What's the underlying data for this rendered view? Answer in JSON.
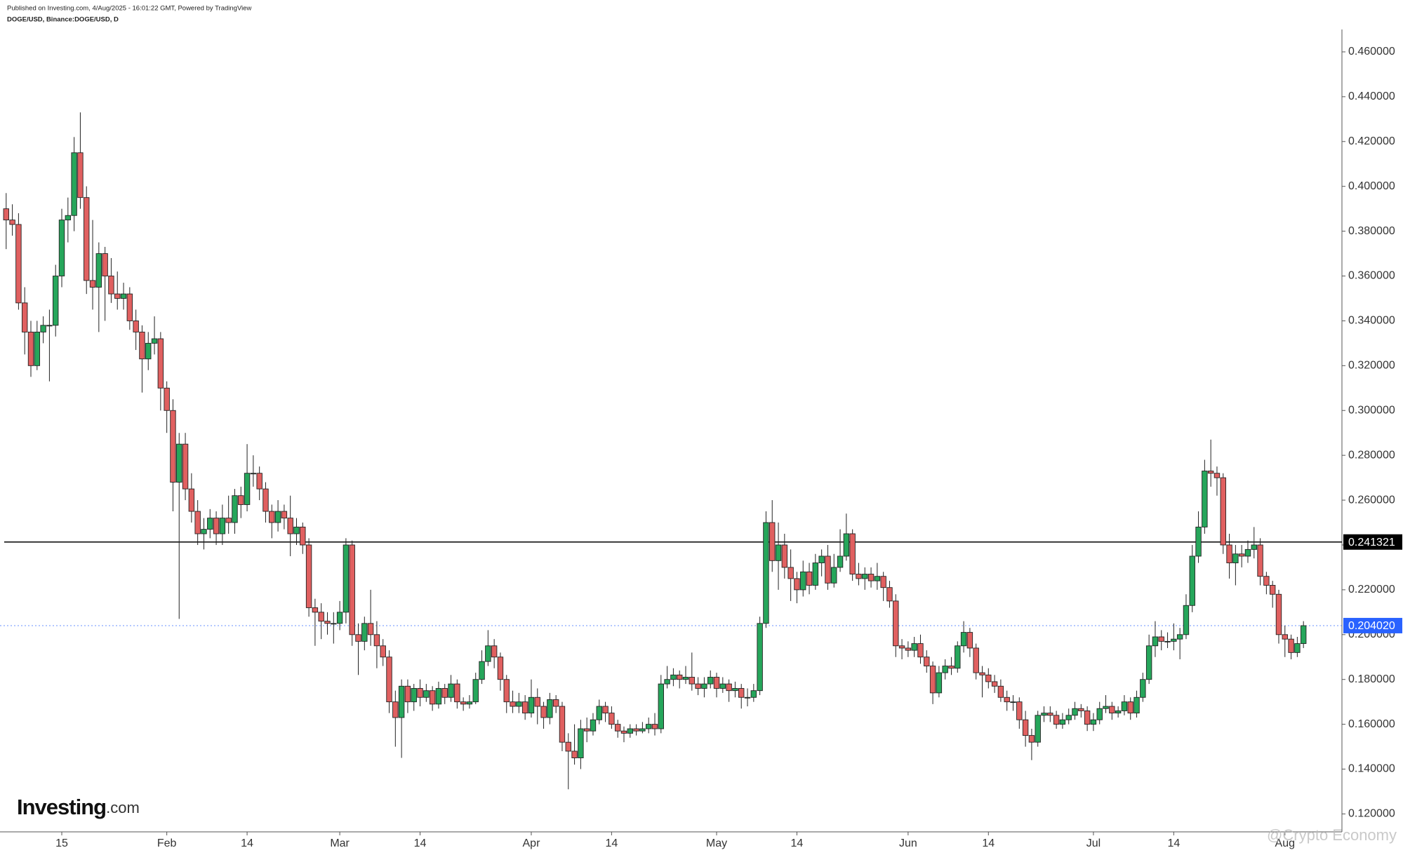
{
  "chart_data": {
    "type": "candlestick",
    "published": "Published on Investing.com, 4/Aug/2025 - 16:01:22 GMT, Powered by TradingView",
    "title": "DOGE/USD, Binance:DOGE/USD, D",
    "logo": {
      "brand": "Investing",
      "suffix": ".com"
    },
    "watermark": "@Crypto Economy",
    "up_color": "#26a65b",
    "down_color": "#e06060",
    "outline_color": "#222222",
    "x": [
      "2025-01-06",
      "2025-01-07",
      "2025-01-08",
      "2025-01-09",
      "2025-01-10",
      "2025-01-11",
      "2025-01-12",
      "2025-01-13",
      "2025-01-14",
      "2025-01-15",
      "2025-01-16",
      "2025-01-17",
      "2025-01-18",
      "2025-01-19",
      "2025-01-20",
      "2025-01-21",
      "2025-01-22",
      "2025-01-23",
      "2025-01-24",
      "2025-01-25",
      "2025-01-26",
      "2025-01-27",
      "2025-01-28",
      "2025-01-29",
      "2025-01-30",
      "2025-01-31",
      "2025-02-01",
      "2025-02-02",
      "2025-02-03",
      "2025-02-04",
      "2025-02-05",
      "2025-02-06",
      "2025-02-07",
      "2025-02-08",
      "2025-02-09",
      "2025-02-10",
      "2025-02-11",
      "2025-02-12",
      "2025-02-13",
      "2025-02-14",
      "2025-02-15",
      "2025-02-16",
      "2025-02-17",
      "2025-02-18",
      "2025-02-19",
      "2025-02-20",
      "2025-02-21",
      "2025-02-22",
      "2025-02-23",
      "2025-02-24",
      "2025-02-25",
      "2025-02-26",
      "2025-02-27",
      "2025-02-28",
      "2025-03-01",
      "2025-03-02",
      "2025-03-03",
      "2025-03-04",
      "2025-03-05",
      "2025-03-06",
      "2025-03-07",
      "2025-03-08",
      "2025-03-09",
      "2025-03-10",
      "2025-03-11",
      "2025-03-12",
      "2025-03-13",
      "2025-03-14",
      "2025-03-15",
      "2025-03-16",
      "2025-03-17",
      "2025-03-18",
      "2025-03-19",
      "2025-03-20",
      "2025-03-21",
      "2025-03-22",
      "2025-03-23",
      "2025-03-24",
      "2025-03-25",
      "2025-03-26",
      "2025-03-27",
      "2025-03-28",
      "2025-03-29",
      "2025-03-30",
      "2025-03-31",
      "2025-04-01",
      "2025-04-02",
      "2025-04-03",
      "2025-04-04",
      "2025-04-05",
      "2025-04-06",
      "2025-04-07",
      "2025-04-08",
      "2025-04-09",
      "2025-04-10",
      "2025-04-11",
      "2025-04-12",
      "2025-04-13",
      "2025-04-14",
      "2025-04-15",
      "2025-04-16",
      "2025-04-17",
      "2025-04-18",
      "2025-04-19",
      "2025-04-20",
      "2025-04-21",
      "2025-04-22",
      "2025-04-23",
      "2025-04-24",
      "2025-04-25",
      "2025-04-26",
      "2025-04-27",
      "2025-04-28",
      "2025-04-29",
      "2025-04-30",
      "2025-05-01",
      "2025-05-02",
      "2025-05-03",
      "2025-05-04",
      "2025-05-05",
      "2025-05-06",
      "2025-05-07",
      "2025-05-08",
      "2025-05-09",
      "2025-05-10",
      "2025-05-11",
      "2025-05-12",
      "2025-05-13",
      "2025-05-14",
      "2025-05-15",
      "2025-05-16",
      "2025-05-17",
      "2025-05-18",
      "2025-05-19",
      "2025-05-20",
      "2025-05-21",
      "2025-05-22",
      "2025-05-23",
      "2025-05-24",
      "2025-05-25",
      "2025-05-26",
      "2025-05-27",
      "2025-05-28",
      "2025-05-29",
      "2025-05-30",
      "2025-05-31",
      "2025-06-01",
      "2025-06-02",
      "2025-06-03",
      "2025-06-04",
      "2025-06-05",
      "2025-06-06",
      "2025-06-07",
      "2025-06-08",
      "2025-06-09",
      "2025-06-10",
      "2025-06-11",
      "2025-06-12",
      "2025-06-13",
      "2025-06-14",
      "2025-06-15",
      "2025-06-16",
      "2025-06-17",
      "2025-06-18",
      "2025-06-19",
      "2025-06-20",
      "2025-06-21",
      "2025-06-22",
      "2025-06-23",
      "2025-06-24",
      "2025-06-25",
      "2025-06-26",
      "2025-06-27",
      "2025-06-28",
      "2025-06-29",
      "2025-06-30",
      "2025-07-01",
      "2025-07-02",
      "2025-07-03",
      "2025-07-04",
      "2025-07-05",
      "2025-07-06",
      "2025-07-07",
      "2025-07-08",
      "2025-07-09",
      "2025-07-10",
      "2025-07-11",
      "2025-07-12",
      "2025-07-13",
      "2025-07-14",
      "2025-07-15",
      "2025-07-16",
      "2025-07-17",
      "2025-07-18",
      "2025-07-19",
      "2025-07-20",
      "2025-07-21",
      "2025-07-22",
      "2025-07-23",
      "2025-07-24",
      "2025-07-25",
      "2025-07-26",
      "2025-07-27",
      "2025-07-28",
      "2025-07-29",
      "2025-07-30",
      "2025-07-31",
      "2025-08-01",
      "2025-08-02",
      "2025-08-03",
      "2025-08-04"
    ],
    "open": [
      0.39,
      0.385,
      0.383,
      0.348,
      0.335,
      0.32,
      0.335,
      0.338,
      0.338,
      0.36,
      0.385,
      0.387,
      0.415,
      0.395,
      0.358,
      0.355,
      0.37,
      0.36,
      0.352,
      0.35,
      0.352,
      0.34,
      0.335,
      0.323,
      0.33,
      0.332,
      0.31,
      0.3,
      0.268,
      0.285,
      0.265,
      0.255,
      0.245,
      0.247,
      0.252,
      0.245,
      0.252,
      0.25,
      0.262,
      0.258,
      0.272,
      0.272,
      0.265,
      0.255,
      0.25,
      0.255,
      0.252,
      0.245,
      0.248,
      0.24,
      0.212,
      0.21,
      0.206,
      0.205,
      0.205,
      0.21,
      0.24,
      0.2,
      0.197,
      0.205,
      0.2,
      0.195,
      0.19,
      0.17,
      0.163,
      0.177,
      0.17,
      0.176,
      0.172,
      0.175,
      0.169,
      0.176,
      0.172,
      0.178,
      0.17,
      0.169,
      0.17,
      0.18,
      0.188,
      0.195,
      0.19,
      0.18,
      0.17,
      0.168,
      0.17,
      0.165,
      0.172,
      0.168,
      0.163,
      0.171,
      0.168,
      0.152,
      0.148,
      0.145,
      0.158,
      0.157,
      0.162,
      0.168,
      0.165,
      0.16,
      0.157,
      0.156,
      0.158,
      0.157,
      0.158,
      0.16,
      0.158,
      0.178,
      0.18,
      0.182,
      0.18,
      0.181,
      0.178,
      0.176,
      0.178,
      0.181,
      0.176,
      0.178,
      0.175,
      0.176,
      0.172,
      0.172,
      0.175,
      0.205,
      0.25,
      0.233,
      0.24,
      0.23,
      0.225,
      0.22,
      0.228,
      0.222,
      0.232,
      0.235,
      0.223,
      0.23,
      0.235,
      0.245,
      0.227,
      0.225,
      0.227,
      0.224,
      0.226,
      0.221,
      0.215,
      0.195,
      0.194,
      0.193,
      0.196,
      0.19,
      0.186,
      0.174,
      0.183,
      0.186,
      0.185,
      0.195,
      0.201,
      0.194,
      0.183,
      0.182,
      0.179,
      0.177,
      0.172,
      0.17,
      0.17,
      0.162,
      0.155,
      0.152,
      0.164,
      0.165,
      0.164,
      0.16,
      0.162,
      0.164,
      0.167,
      0.166,
      0.16,
      0.162,
      0.167,
      0.168,
      0.165,
      0.166,
      0.17,
      0.165,
      0.172,
      0.18,
      0.195,
      0.199,
      0.197,
      0.197,
      0.198,
      0.2,
      0.213,
      0.235,
      0.248,
      0.273,
      0.272,
      0.27,
      0.24,
      0.232,
      0.236,
      0.235,
      0.238,
      0.24,
      0.226,
      0.222,
      0.218,
      0.2,
      0.198,
      0.192,
      0.196
    ],
    "high": [
      0.397,
      0.392,
      0.388,
      0.355,
      0.34,
      0.34,
      0.342,
      0.345,
      0.365,
      0.39,
      0.395,
      0.422,
      0.433,
      0.4,
      0.385,
      0.375,
      0.373,
      0.368,
      0.362,
      0.357,
      0.355,
      0.345,
      0.338,
      0.335,
      0.342,
      0.335,
      0.313,
      0.305,
      0.29,
      0.29,
      0.272,
      0.26,
      0.252,
      0.256,
      0.255,
      0.258,
      0.262,
      0.265,
      0.266,
      0.285,
      0.28,
      0.275,
      0.268,
      0.258,
      0.26,
      0.258,
      0.262,
      0.252,
      0.25,
      0.243,
      0.216,
      0.214,
      0.21,
      0.21,
      0.215,
      0.243,
      0.242,
      0.205,
      0.208,
      0.22,
      0.206,
      0.198,
      0.193,
      0.175,
      0.18,
      0.18,
      0.178,
      0.18,
      0.178,
      0.177,
      0.179,
      0.178,
      0.182,
      0.18,
      0.172,
      0.173,
      0.183,
      0.193,
      0.202,
      0.198,
      0.192,
      0.182,
      0.175,
      0.174,
      0.173,
      0.18,
      0.176,
      0.17,
      0.174,
      0.173,
      0.17,
      0.156,
      0.16,
      0.162,
      0.163,
      0.165,
      0.171,
      0.17,
      0.168,
      0.162,
      0.159,
      0.16,
      0.16,
      0.161,
      0.163,
      0.165,
      0.182,
      0.186,
      0.185,
      0.184,
      0.186,
      0.192,
      0.181,
      0.181,
      0.184,
      0.183,
      0.181,
      0.18,
      0.179,
      0.178,
      0.176,
      0.178,
      0.208,
      0.255,
      0.26,
      0.25,
      0.245,
      0.238,
      0.228,
      0.233,
      0.232,
      0.236,
      0.238,
      0.24,
      0.236,
      0.247,
      0.254,
      0.247,
      0.232,
      0.23,
      0.23,
      0.232,
      0.228,
      0.224,
      0.218,
      0.198,
      0.197,
      0.199,
      0.2,
      0.193,
      0.188,
      0.186,
      0.189,
      0.19,
      0.197,
      0.206,
      0.203,
      0.196,
      0.186,
      0.185,
      0.182,
      0.18,
      0.175,
      0.173,
      0.172,
      0.166,
      0.158,
      0.166,
      0.168,
      0.168,
      0.166,
      0.165,
      0.167,
      0.17,
      0.169,
      0.168,
      0.165,
      0.17,
      0.173,
      0.17,
      0.168,
      0.173,
      0.172,
      0.175,
      0.183,
      0.2,
      0.206,
      0.202,
      0.201,
      0.205,
      0.203,
      0.218,
      0.24,
      0.255,
      0.278,
      0.287,
      0.275,
      0.272,
      0.245,
      0.24,
      0.24,
      0.242,
      0.248,
      0.243,
      0.228,
      0.224,
      0.22,
      0.204,
      0.2,
      0.199,
      0.206
    ],
    "low": [
      0.372,
      0.378,
      0.345,
      0.325,
      0.315,
      0.318,
      0.33,
      0.313,
      0.333,
      0.355,
      0.375,
      0.38,
      0.39,
      0.352,
      0.345,
      0.335,
      0.34,
      0.348,
      0.345,
      0.345,
      0.336,
      0.327,
      0.308,
      0.318,
      0.325,
      0.3,
      0.29,
      0.255,
      0.207,
      0.26,
      0.25,
      0.24,
      0.238,
      0.243,
      0.24,
      0.24,
      0.245,
      0.245,
      0.252,
      0.255,
      0.266,
      0.26,
      0.25,
      0.243,
      0.246,
      0.247,
      0.235,
      0.24,
      0.236,
      0.208,
      0.195,
      0.198,
      0.2,
      0.196,
      0.202,
      0.205,
      0.195,
      0.182,
      0.193,
      0.195,
      0.185,
      0.186,
      0.165,
      0.15,
      0.145,
      0.165,
      0.166,
      0.168,
      0.17,
      0.166,
      0.167,
      0.169,
      0.17,
      0.167,
      0.166,
      0.167,
      0.169,
      0.178,
      0.186,
      0.185,
      0.175,
      0.165,
      0.165,
      0.165,
      0.162,
      0.163,
      0.16,
      0.158,
      0.16,
      0.165,
      0.148,
      0.131,
      0.142,
      0.14,
      0.152,
      0.155,
      0.16,
      0.161,
      0.158,
      0.154,
      0.152,
      0.154,
      0.155,
      0.156,
      0.156,
      0.155,
      0.156,
      0.176,
      0.177,
      0.176,
      0.178,
      0.175,
      0.173,
      0.172,
      0.176,
      0.172,
      0.174,
      0.17,
      0.172,
      0.167,
      0.168,
      0.17,
      0.173,
      0.203,
      0.228,
      0.22,
      0.225,
      0.215,
      0.214,
      0.217,
      0.218,
      0.22,
      0.226,
      0.22,
      0.221,
      0.228,
      0.233,
      0.224,
      0.222,
      0.22,
      0.221,
      0.22,
      0.215,
      0.212,
      0.19,
      0.189,
      0.19,
      0.19,
      0.187,
      0.183,
      0.169,
      0.172,
      0.18,
      0.182,
      0.183,
      0.192,
      0.19,
      0.18,
      0.172,
      0.176,
      0.174,
      0.17,
      0.166,
      0.166,
      0.158,
      0.15,
      0.144,
      0.15,
      0.161,
      0.161,
      0.158,
      0.158,
      0.16,
      0.162,
      0.163,
      0.157,
      0.157,
      0.16,
      0.165,
      0.162,
      0.163,
      0.164,
      0.162,
      0.163,
      0.17,
      0.178,
      0.19,
      0.193,
      0.194,
      0.193,
      0.189,
      0.198,
      0.21,
      0.232,
      0.245,
      0.266,
      0.262,
      0.236,
      0.225,
      0.222,
      0.23,
      0.232,
      0.234,
      0.222,
      0.218,
      0.212,
      0.196,
      0.19,
      0.189,
      0.19,
      0.194
    ],
    "close": [
      0.385,
      0.383,
      0.348,
      0.335,
      0.32,
      0.335,
      0.338,
      0.338,
      0.36,
      0.385,
      0.387,
      0.415,
      0.395,
      0.358,
      0.355,
      0.37,
      0.36,
      0.352,
      0.35,
      0.352,
      0.34,
      0.335,
      0.323,
      0.33,
      0.332,
      0.31,
      0.3,
      0.268,
      0.285,
      0.265,
      0.255,
      0.245,
      0.247,
      0.252,
      0.245,
      0.252,
      0.25,
      0.262,
      0.258,
      0.272,
      0.272,
      0.265,
      0.255,
      0.25,
      0.255,
      0.252,
      0.245,
      0.248,
      0.24,
      0.212,
      0.21,
      0.206,
      0.205,
      0.205,
      0.21,
      0.24,
      0.2,
      0.197,
      0.205,
      0.2,
      0.195,
      0.19,
      0.17,
      0.163,
      0.177,
      0.17,
      0.176,
      0.172,
      0.175,
      0.169,
      0.176,
      0.172,
      0.178,
      0.17,
      0.169,
      0.17,
      0.18,
      0.188,
      0.195,
      0.19,
      0.18,
      0.17,
      0.168,
      0.17,
      0.165,
      0.172,
      0.168,
      0.163,
      0.171,
      0.168,
      0.152,
      0.148,
      0.145,
      0.158,
      0.157,
      0.162,
      0.168,
      0.165,
      0.16,
      0.157,
      0.156,
      0.158,
      0.157,
      0.158,
      0.16,
      0.158,
      0.178,
      0.18,
      0.182,
      0.18,
      0.181,
      0.178,
      0.176,
      0.178,
      0.181,
      0.176,
      0.178,
      0.175,
      0.176,
      0.172,
      0.172,
      0.175,
      0.205,
      0.25,
      0.233,
      0.24,
      0.23,
      0.225,
      0.22,
      0.228,
      0.222,
      0.232,
      0.235,
      0.223,
      0.23,
      0.235,
      0.245,
      0.227,
      0.225,
      0.227,
      0.224,
      0.226,
      0.221,
      0.215,
      0.195,
      0.194,
      0.193,
      0.196,
      0.19,
      0.186,
      0.174,
      0.183,
      0.186,
      0.185,
      0.195,
      0.201,
      0.194,
      0.183,
      0.182,
      0.179,
      0.177,
      0.172,
      0.17,
      0.17,
      0.162,
      0.155,
      0.152,
      0.164,
      0.165,
      0.164,
      0.16,
      0.162,
      0.164,
      0.167,
      0.166,
      0.16,
      0.162,
      0.167,
      0.168,
      0.165,
      0.166,
      0.17,
      0.165,
      0.172,
      0.18,
      0.195,
      0.199,
      0.197,
      0.197,
      0.198,
      0.2,
      0.213,
      0.235,
      0.248,
      0.273,
      0.272,
      0.27,
      0.24,
      0.232,
      0.236,
      0.235,
      0.238,
      0.24,
      0.226,
      0.222,
      0.218,
      0.2,
      0.198,
      0.192,
      0.196,
      0.204
    ],
    "xlim": [
      "2025-01-05",
      "2025-08-10"
    ],
    "xticks": [
      {
        "value": "2025-01-15",
        "label": "15"
      },
      {
        "value": "2025-02-01",
        "label": "Feb"
      },
      {
        "value": "2025-02-14",
        "label": "14"
      },
      {
        "value": "2025-03-01",
        "label": "Mar"
      },
      {
        "value": "2025-03-14",
        "label": "14"
      },
      {
        "value": "2025-04-01",
        "label": "Apr"
      },
      {
        "value": "2025-04-14",
        "label": "14"
      },
      {
        "value": "2025-05-01",
        "label": "May"
      },
      {
        "value": "2025-05-14",
        "label": "14"
      },
      {
        "value": "2025-06-01",
        "label": "Jun"
      },
      {
        "value": "2025-06-14",
        "label": "14"
      },
      {
        "value": "2025-07-01",
        "label": "Jul"
      },
      {
        "value": "2025-07-14",
        "label": "14"
      },
      {
        "value": "2025-08-01",
        "label": "Aug"
      }
    ],
    "ylim": [
      0.112,
      0.47
    ],
    "yticks": [
      {
        "value": 0.12,
        "label": "0.120000"
      },
      {
        "value": 0.14,
        "label": "0.140000"
      },
      {
        "value": 0.16,
        "label": "0.160000"
      },
      {
        "value": 0.18,
        "label": "0.180000"
      },
      {
        "value": 0.2,
        "label": "0.200000"
      },
      {
        "value": 0.22,
        "label": "0.220000"
      },
      {
        "value": 0.24,
        "label": "0.240000"
      },
      {
        "value": 0.26,
        "label": "0.260000"
      },
      {
        "value": 0.28,
        "label": "0.280000"
      },
      {
        "value": 0.3,
        "label": "0.300000"
      },
      {
        "value": 0.32,
        "label": "0.320000"
      },
      {
        "value": 0.34,
        "label": "0.340000"
      },
      {
        "value": 0.36,
        "label": "0.360000"
      },
      {
        "value": 0.38,
        "label": "0.380000"
      },
      {
        "value": 0.4,
        "label": "0.400000"
      },
      {
        "value": 0.42,
        "label": "0.420000"
      },
      {
        "value": 0.44,
        "label": "0.440000"
      },
      {
        "value": 0.46,
        "label": "0.460000"
      }
    ],
    "grid": false,
    "level_line": {
      "value": 0.241321,
      "color": "#000000"
    },
    "last_price": {
      "value": 0.20402,
      "label": "0.204020",
      "color": "#2962ff"
    }
  }
}
